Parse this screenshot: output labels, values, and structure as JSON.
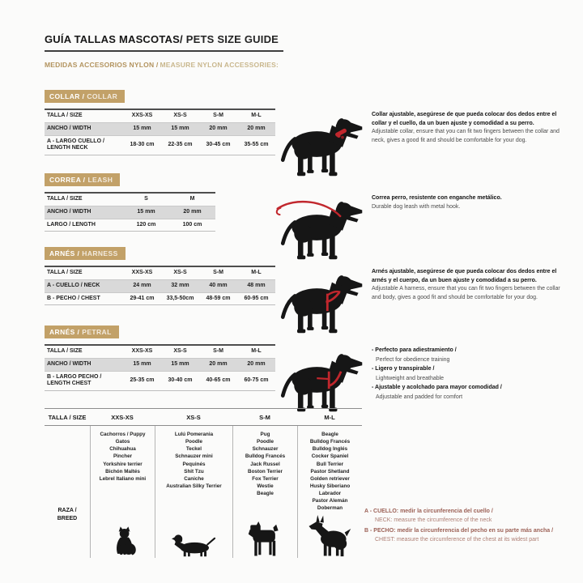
{
  "header": {
    "title_es": "GUÍA TALLAS MASCOTAS/",
    "title_en": "PETS SIZE GUIDE",
    "subtitle_es": "MEDIDAS ACCESORIOS NYLON /",
    "subtitle_en": "MEASURE NYLON ACCESSORIES:"
  },
  "colors": {
    "badge_gold": "#c2a168",
    "accessory_red": "#c1272d",
    "notes_brown": "#9c6156",
    "shaded_row_gray": "#d9d9d9"
  },
  "sections": [
    {
      "id": "collar",
      "badge_es": "COLLAR /",
      "badge_en": "COLLAR",
      "illustration": "dog-with-collar",
      "table": {
        "columns": [
          "TALLA / SIZE",
          "XXS-XS",
          "XS-S",
          "S-M",
          "M-L"
        ],
        "rows": [
          {
            "label": "ANCHO / WIDTH",
            "values": [
              "15 mm",
              "15 mm",
              "20 mm",
              "20 mm"
            ],
            "shaded": true
          },
          {
            "label": "A - LARGO CUELLO / LENGTH NECK",
            "values": [
              "18-30 cm",
              "22-35 cm",
              "30-45 cm",
              "35-55 cm"
            ],
            "shaded": false
          }
        ]
      },
      "description": [
        {
          "bold": true,
          "text": "Collar ajustable, asegúrese de que pueda colocar dos dedos entre el collar y el cuello, da un buen ajuste y comodidad a su perro."
        },
        {
          "bold": false,
          "text": "Adjustable collar, ensure that you can fit two fingers between the collar and neck, gives a good fit and should be comfortable for your dog."
        }
      ]
    },
    {
      "id": "leash",
      "badge_es": "CORREA /",
      "badge_en": "LEASH",
      "illustration": "dog-with-leash",
      "table": {
        "columns": [
          "TALLA / SIZE",
          "S",
          "M"
        ],
        "rows": [
          {
            "label": "ANCHO / WIDTH",
            "values": [
              "15 mm",
              "20 mm"
            ],
            "shaded": true
          },
          {
            "label": "LARGO / LENGTH",
            "values": [
              "120 cm",
              "100 cm"
            ],
            "shaded": false
          }
        ]
      },
      "description": [
        {
          "bold": true,
          "text": "Correa perro, resistente con enganche metálico."
        },
        {
          "bold": false,
          "text": "Durable dog leash with metal hook."
        }
      ]
    },
    {
      "id": "harness",
      "badge_es": "ARNÉS /",
      "badge_en": "HARNESS",
      "illustration": "dog-with-harness",
      "table": {
        "columns": [
          "TALLA / SIZE",
          "XXS-XS",
          "XS-S",
          "S-M",
          "M-L"
        ],
        "rows": [
          {
            "label": "A - CUELLO / NECK",
            "values": [
              "24 mm",
              "32 mm",
              "40 mm",
              "48 mm"
            ],
            "shaded": true
          },
          {
            "label": "B - PECHO / CHEST",
            "values": [
              "29-41 cm",
              "33,5-50cm",
              "48-59 cm",
              "60-95 cm"
            ],
            "shaded": false
          }
        ]
      },
      "description": [
        {
          "bold": true,
          "text": "Arnés ajustable, asegúrese de que pueda colocar dos dedos entre el arnés y el cuerpo, da un buen ajuste y comodidad a su perro."
        },
        {
          "bold": false,
          "text": "Adjustable A harness, ensure that you can fit two fingers between the collar and body, gives a good fit and should be comfortable for your dog."
        }
      ]
    },
    {
      "id": "petral",
      "badge_es": "ARNÉS /",
      "badge_en": "PETRAL",
      "illustration": "dog-with-petral",
      "table": {
        "columns": [
          "TALLA / SIZE",
          "XXS-XS",
          "XS-S",
          "S-M",
          "M-L"
        ],
        "rows": [
          {
            "label": "ANCHO / WIDTH",
            "values": [
              "15 mm",
              "15 mm",
              "20 mm",
              "20 mm"
            ],
            "shaded": true
          },
          {
            "label": "B - LARGO PECHO / LENGTH CHEST",
            "values": [
              "25-35 cm",
              "30-40 cm",
              "40-65 cm",
              "60-75 cm"
            ],
            "shaded": false
          }
        ]
      },
      "description": [
        {
          "bold": true,
          "text": "- Perfecto para adiestramiento /"
        },
        {
          "bold": false,
          "text": "Perfect for obedience training"
        },
        {
          "bold": true,
          "text": "- Ligero y transpirable /"
        },
        {
          "bold": false,
          "text": "Lightweight and breathable"
        },
        {
          "bold": true,
          "text": "- Ajustable y acolchado para mayor comodidad /"
        },
        {
          "bold": false,
          "text": "Adjustable and padded for comfort"
        }
      ]
    }
  ],
  "breed_table": {
    "header": [
      "TALLA / SIZE",
      "XXS-XS",
      "XS-S",
      "S-M",
      "M-L"
    ],
    "row_label": "RAZA / BREED",
    "columns": [
      {
        "size": "XXS-XS",
        "animal": "cat",
        "breeds": [
          "Cachorros / Puppy",
          "Gatos",
          "Chihuahua",
          "Pincher",
          "Yorkshire terrier",
          "Bichón Maltés",
          "Lebrel Italiano mini"
        ]
      },
      {
        "size": "XS-S",
        "animal": "dachshund",
        "breeds": [
          "Lulú Pomerania",
          "Poodle",
          "Teckel",
          "Schnauzer mini",
          "Pequinés",
          "Shit Tzu",
          "Caniche",
          "Australian Silky Terrier"
        ]
      },
      {
        "size": "S-M",
        "animal": "schnauzer",
        "breeds": [
          "Pug",
          "Poodle",
          "Schnauzer",
          "Bulldog Francés",
          "Jack Russel",
          "Boston Terrier",
          "Fox Terrier",
          "Westie",
          "Beagle"
        ]
      },
      {
        "size": "M-L",
        "animal": "doberman",
        "breeds": [
          "Beagle",
          "Bulldog Francés",
          "Bulldog Inglés",
          "Cocker Spaniel",
          "Bull Terrier",
          "Pastor Shetland",
          "Golden retriever",
          "Husky Siberiano",
          "Labrador",
          "Pastor Alemán",
          "Doberman"
        ]
      }
    ]
  },
  "notes": [
    {
      "es": "A - CUELLO: medir la circunferencia del cuello /",
      "en": "NECK: measure the circumference of the neck"
    },
    {
      "es": "B - PECHO: medir la circunferencia del pecho en su parte más ancha /",
      "en": "CHEST: measure the circumference of the chest at its widest part"
    }
  ]
}
